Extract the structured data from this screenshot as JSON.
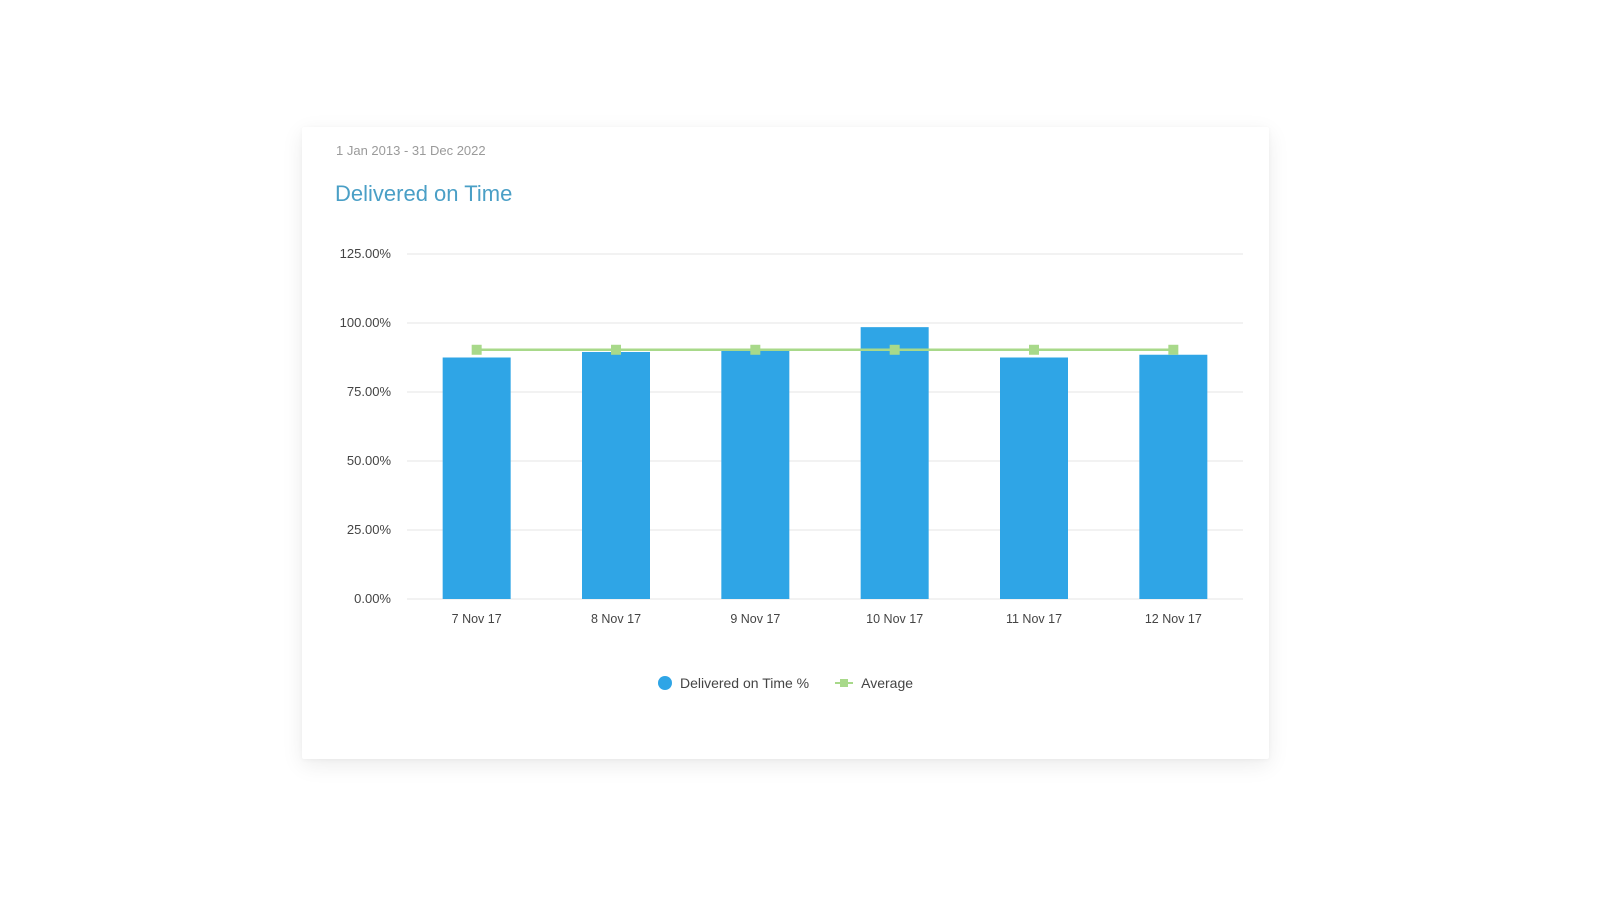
{
  "header": {
    "date_range": "1 Jan 2013 - 31 Dec 2022",
    "title": "Delivered on Time"
  },
  "colors": {
    "bar": "#2fa5e6",
    "average": "#a8d98a",
    "grid": "#e6e6e6",
    "title": "#4a9fc6"
  },
  "legend": {
    "bar_label": "Delivered on Time %",
    "line_label": "Average"
  },
  "chart_data": {
    "type": "bar",
    "title": "Delivered on Time",
    "categories": [
      "7 Nov 17",
      "8 Nov 17",
      "9 Nov 17",
      "10 Nov 17",
      "11 Nov 17",
      "12 Nov 17"
    ],
    "series": [
      {
        "name": "Delivered on Time %",
        "type": "bar",
        "values": [
          87.5,
          89.5,
          90.5,
          98.5,
          87.5,
          88.5
        ]
      },
      {
        "name": "Average",
        "type": "line",
        "values": [
          90.3,
          90.3,
          90.3,
          90.3,
          90.3,
          90.3
        ]
      }
    ],
    "y_ticks": [
      0,
      25,
      50,
      75,
      100,
      125
    ],
    "y_tick_labels": [
      "0.00%",
      "25.00%",
      "50.00%",
      "75.00%",
      "100.00%",
      "125.00%"
    ],
    "ylim": [
      0,
      125
    ],
    "xlabel": "",
    "ylabel": "",
    "grid": true,
    "legend_position": "bottom"
  }
}
